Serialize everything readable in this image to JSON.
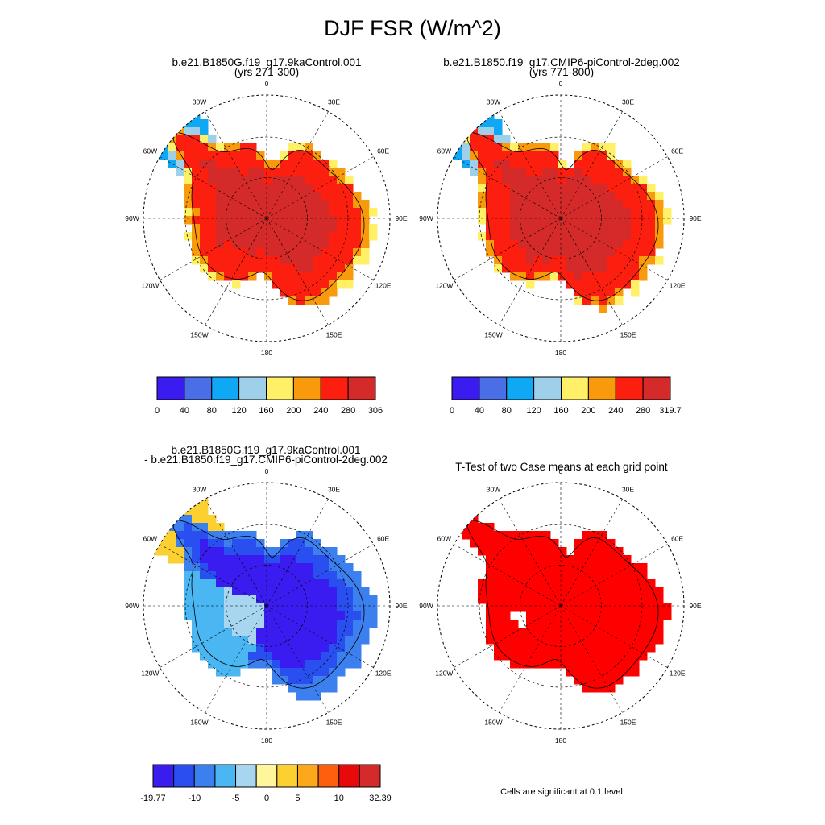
{
  "title": "DJF FSR (W/m^2)",
  "chart_data": [
    {
      "type": "heatmap",
      "projection": "south-polar-stereographic",
      "title": "b.e21.B1850G.f19_g17.9kaControl.001",
      "subtitle": "(yrs 271-300)",
      "lon_labels": [
        "0",
        "30E",
        "60E",
        "90E",
        "120E",
        "150E",
        "180",
        "150W",
        "120W",
        "90W",
        "60W",
        "30W"
      ],
      "colorbar": {
        "tick_labels": [
          "0",
          "40",
          "80",
          "120",
          "160",
          "200",
          "240",
          "280",
          "306"
        ],
        "colors": [
          "#3b1cf0",
          "#4a6ee6",
          "#0ea8f4",
          "#9ed0ea",
          "#fff068",
          "#f99a0c",
          "#fc1f0f",
          "#d42a2a"
        ]
      },
      "field_summary": {
        "interior_class": "280-306",
        "plateau_class": "280-306",
        "margin_classes": [
          "240-280",
          "200-240",
          "160-200"
        ],
        "peninsula_classes": [
          "120-160",
          "80-120"
        ]
      }
    },
    {
      "type": "heatmap",
      "projection": "south-polar-stereographic",
      "title": "b.e21.B1850.f19_g17.CMIP6-piControl-2deg.002",
      "subtitle": "(yrs 771-800)",
      "lon_labels": [
        "0",
        "30E",
        "60E",
        "90E",
        "120E",
        "150E",
        "180",
        "150W",
        "120W",
        "90W",
        "60W",
        "30W"
      ],
      "colorbar": {
        "tick_labels": [
          "0",
          "40",
          "80",
          "120",
          "160",
          "200",
          "240",
          "280",
          "319.7"
        ],
        "colors": [
          "#3b1cf0",
          "#4a6ee6",
          "#0ea8f4",
          "#9ed0ea",
          "#fff068",
          "#f99a0c",
          "#fc1f0f",
          "#d42a2a"
        ]
      },
      "field_summary": {
        "interior_class": "280-319.7",
        "plateau_class": "280-319.7",
        "margin_classes": [
          "240-280",
          "200-240",
          "160-200"
        ],
        "peninsula_classes": [
          "120-160",
          "80-120"
        ]
      }
    },
    {
      "type": "heatmap",
      "projection": "south-polar-stereographic",
      "title": "b.e21.B1850G.f19_g17.9kaControl.001",
      "subtitle": "- b.e21.B1850.f19_g17.CMIP6-piControl-2deg.002",
      "lon_labels": [
        "0",
        "30E",
        "60E",
        "90E",
        "120E",
        "150E",
        "180",
        "150W",
        "120W",
        "90W",
        "60W",
        "30W"
      ],
      "colorbar": {
        "tick_labels": [
          "-19.77",
          "-10",
          "-5",
          "0",
          "5",
          "10",
          "32.39"
        ],
        "colors": [
          "#3b1cf0",
          "#2a4ff0",
          "#3c7fee",
          "#4ab6f2",
          "#a8d6f0",
          "#fff59a",
          "#fcd030",
          "#fca81a",
          "#fc600c",
          "#e80a0a",
          "#d42a2a"
        ]
      },
      "field_summary": {
        "east_antarctica": "-19.77 to -10",
        "west_antarctica": "-5 to 0",
        "peninsula": "0 to 10"
      }
    },
    {
      "type": "heatmap",
      "projection": "south-polar-stereographic",
      "title": "T-Test of two Case means at each grid point",
      "lon_labels": [
        "0",
        "30E",
        "60E",
        "90E",
        "120E",
        "150E",
        "180",
        "150W",
        "120W",
        "90W",
        "60W",
        "30W"
      ],
      "note": "Cells are significant at 0.1 level",
      "significant_color": "#ff0000"
    }
  ]
}
